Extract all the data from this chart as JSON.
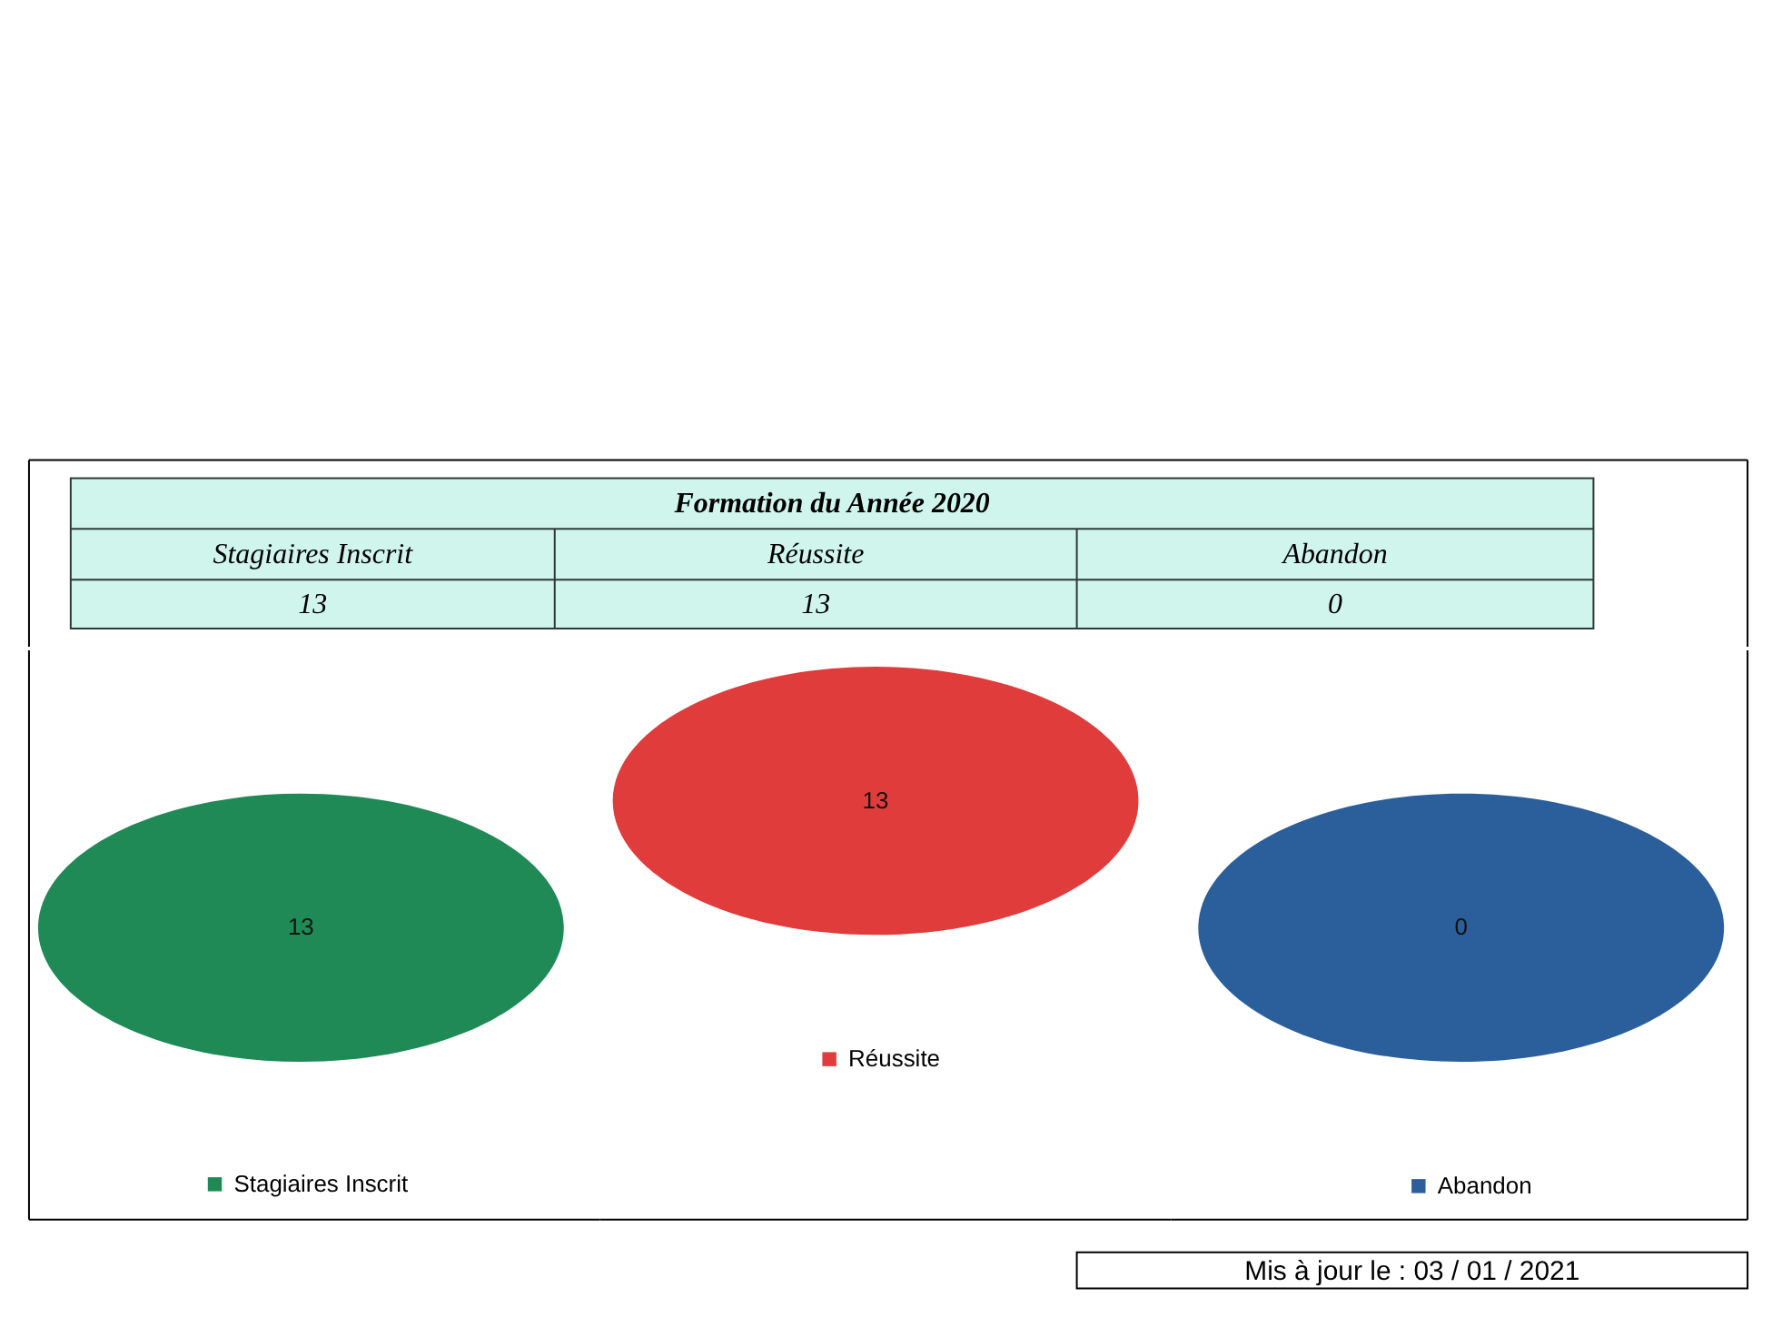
{
  "chart_data": [
    {
      "type": "other",
      "title": "Formation du Année 2020",
      "categories": [
        "Stagiaires Inscrit",
        "Réussite",
        "Abandon"
      ],
      "values": [
        13,
        13,
        0
      ],
      "data_labels": true
    },
    {
      "type": "other",
      "series": [
        {
          "name": "Réussite",
          "color": "#e03c3c",
          "values": [
            13
          ]
        }
      ],
      "data_labels": true,
      "legend": "bottom"
    },
    {
      "type": "other",
      "series": [
        {
          "name": "Stagiaires Inscrit",
          "color": "#1f8a55",
          "values": [
            13
          ]
        }
      ],
      "data_labels": true,
      "legend": "bottom"
    },
    {
      "type": "other",
      "series": [
        {
          "name": "Abandon",
          "color": "#2b5f9c",
          "values": [
            0
          ]
        }
      ],
      "data_labels": true,
      "legend": "bottom"
    },
    {
      "type": "other",
      "annotations": [
        "Mis à jour le : 03 / 01 / 2021"
      ]
    }
  ]
}
